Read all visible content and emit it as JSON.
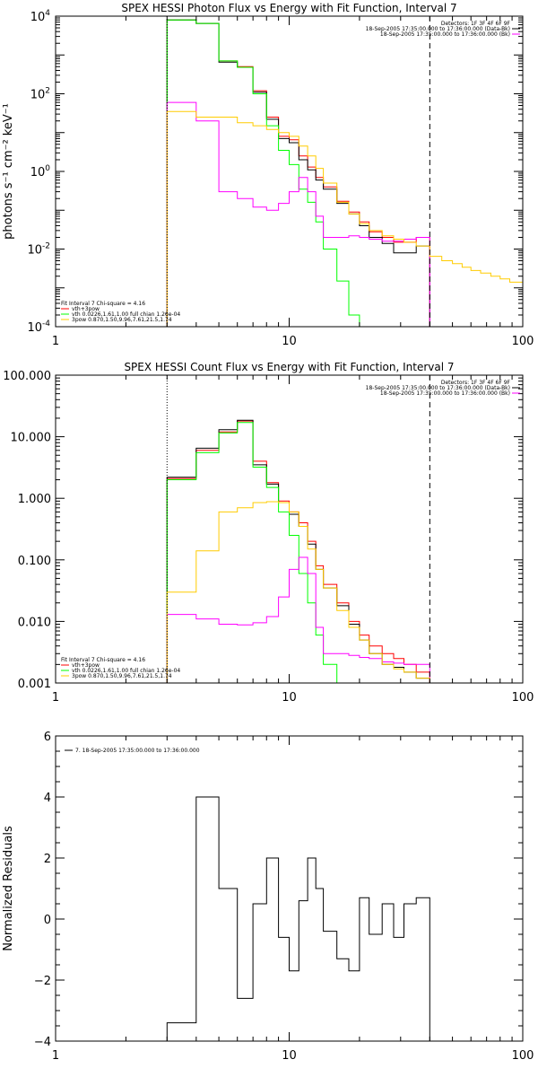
{
  "chart_data": [
    {
      "type": "line",
      "step": true,
      "title": "SPEX HESSI Photon Flux vs Energy with Fit Function, Interval 7",
      "ylabel": "photons s⁻¹ cm⁻² keV⁻¹",
      "xlabel": "",
      "xscale": "log",
      "yscale": "log",
      "xlim": [
        1,
        100
      ],
      "ylim": [
        0.0001,
        10000
      ],
      "x_ticks": [
        {
          "value": 1,
          "label": "1"
        },
        {
          "value": 10,
          "label": "10"
        },
        {
          "value": 100,
          "label": "100"
        }
      ],
      "y_ticks": [
        {
          "value": 0.0001,
          "base": "10",
          "exp": "-4"
        },
        {
          "value": 0.01,
          "base": "10",
          "exp": "-2"
        },
        {
          "value": 1,
          "base": "10",
          "exp": "0"
        },
        {
          "value": 100,
          "base": "10",
          "exp": "2"
        },
        {
          "value": 10000,
          "base": "10",
          "exp": "4"
        }
      ],
      "legend_top_right": {
        "header": "Detectors: 1F 3F 4F 6F 9F",
        "entries": [
          {
            "label": "18-Sep-2005 17:35:00.000 to 17:36:00.000 (Data-Bk)",
            "color": "#000000"
          },
          {
            "label": "18-Sep-2005 17:35:00.000 to 17:36:00.000 (Bk)",
            "color": "#ff00ff"
          }
        ]
      },
      "legend_bottom_left": {
        "header": "Fit Interval 7   Chi-square = 4.16",
        "entries": [
          {
            "label": "vth+3pow",
            "color": "#ff0000"
          },
          {
            "label": "vth 0.0226,1.61,1.00  full chian 1.26e-04",
            "color": "#00ff00"
          },
          {
            "label": "3pow 0.870,1.50,9.96,7.61,21.5,1.74",
            "color": "#ffcc00"
          }
        ]
      },
      "vlines": [
        {
          "x": 3,
          "style": "dotted",
          "color": "#000000"
        },
        {
          "x": 40,
          "style": "dashed",
          "color": "#000000"
        }
      ],
      "series": [
        {
          "color": "#ff0000",
          "edges": [
            3,
            4,
            5,
            6,
            7,
            8,
            9,
            10,
            11,
            12,
            13,
            14,
            16,
            18,
            20,
            22,
            25,
            28,
            31,
            35,
            40
          ],
          "values": [
            8000,
            6500,
            700,
            500,
            120,
            25,
            8,
            6.5,
            2.5,
            1.3,
            0.7,
            0.4,
            0.17,
            0.09,
            0.05,
            0.028,
            0.02,
            0.015,
            0.015,
            0.02
          ]
        },
        {
          "name": "Data-Bk",
          "color": "#000000",
          "edges": [
            3,
            4,
            5,
            6,
            7,
            8,
            9,
            10,
            11,
            12,
            13,
            14,
            16,
            18,
            20,
            22,
            25,
            28,
            31,
            35,
            40
          ],
          "values": [
            8000,
            6500,
            650,
            480,
            110,
            22,
            7,
            5.5,
            2,
            1.1,
            0.6,
            0.35,
            0.15,
            0.08,
            0.04,
            0.02,
            0.014,
            0.008,
            0.008,
            0.012
          ]
        },
        {
          "color": "#00ff00",
          "edges": [
            3,
            4,
            5,
            6,
            7,
            8,
            9,
            10,
            11,
            12,
            13,
            14,
            16,
            18,
            20,
            22
          ],
          "values": [
            8000,
            6500,
            700,
            480,
            100,
            15,
            3.5,
            1.5,
            0.35,
            0.16,
            0.05,
            0.01,
            0.0015,
            0.0002,
            8e-05
          ]
        },
        {
          "color": "#ff00ff",
          "edges": [
            3,
            4,
            5,
            6,
            7,
            8,
            9,
            10,
            11,
            12,
            13,
            14,
            16,
            18,
            20,
            22,
            25,
            28,
            31,
            35,
            40
          ],
          "values": [
            60,
            20,
            0.3,
            0.2,
            0.12,
            0.1,
            0.15,
            0.3,
            0.7,
            0.3,
            0.07,
            0.02,
            0.02,
            0.022,
            0.02,
            0.018,
            0.016,
            0.016,
            0.018,
            0.02
          ]
        },
        {
          "color": "#ffcc00",
          "edges": [
            3,
            4,
            5,
            6,
            7,
            8,
            9,
            10,
            11,
            12,
            13,
            14,
            16,
            18,
            20,
            22,
            25,
            28,
            31,
            35,
            40,
            45,
            50,
            55,
            60,
            66,
            73,
            80,
            88,
            100
          ],
          "values": [
            35,
            25,
            25,
            18,
            15,
            12,
            10,
            8,
            4.5,
            2.5,
            1.2,
            0.5,
            0.16,
            0.08,
            0.045,
            0.03,
            0.022,
            0.018,
            0.015,
            0.012,
            0.0065,
            0.005,
            0.0042,
            0.0034,
            0.0028,
            0.0024,
            0.002,
            0.0017,
            0.0014
          ]
        }
      ]
    },
    {
      "type": "line",
      "step": true,
      "title": "SPEX HESSI Count Flux vs Energy with Fit Function, Interval 7",
      "ylabel": "",
      "xlabel": "",
      "xscale": "log",
      "yscale": "log",
      "xlim": [
        1,
        100
      ],
      "ylim": [
        0.001,
        100
      ],
      "x_ticks": [
        {
          "value": 1,
          "label": "1"
        },
        {
          "value": 10,
          "label": "10"
        },
        {
          "value": 100,
          "label": "100"
        }
      ],
      "y_ticks": [
        {
          "value": 0.001,
          "label": "0.001"
        },
        {
          "value": 0.01,
          "label": "0.010"
        },
        {
          "value": 0.1,
          "label": "0.100"
        },
        {
          "value": 1,
          "label": "1.000"
        },
        {
          "value": 10,
          "label": "10.000"
        },
        {
          "value": 100,
          "label": "100.000"
        }
      ],
      "legend_top_right": {
        "header": "Detectors: 1F 3F 4F 6F 9F",
        "entries": [
          {
            "label": "18-Sep-2005 17:35:00.000 to 17:36:00.000 (Data-Bk)",
            "color": "#000000"
          },
          {
            "label": "18-Sep-2005 17:35:00.000 to 17:36:00.000 (Bk)",
            "color": "#ff00ff"
          }
        ]
      },
      "legend_bottom_left": {
        "header": "Fit Interval 7   Chi-square = 4.16",
        "entries": [
          {
            "label": "vth+3pow",
            "color": "#ff0000"
          },
          {
            "label": "vth 0.0226,1.61,1.00  full chian 1.26e-04",
            "color": "#00ff00"
          },
          {
            "label": "3pow 0.870,1.50,9.96,7.61,21.5,1.74",
            "color": "#ffcc00"
          }
        ]
      },
      "vlines": [
        {
          "x": 3,
          "style": "dotted",
          "color": "#000000"
        },
        {
          "x": 40,
          "style": "dashed",
          "color": "#000000"
        }
      ],
      "series": [
        {
          "color": "#ff0000",
          "edges": [
            3,
            4,
            5,
            6,
            7,
            8,
            9,
            10,
            11,
            12,
            13,
            14,
            16,
            18,
            20,
            22,
            25,
            28,
            31,
            35,
            40
          ],
          "values": [
            2.1,
            6,
            12,
            18,
            4,
            1.8,
            0.9,
            0.6,
            0.4,
            0.2,
            0.08,
            0.04,
            0.02,
            0.01,
            0.006,
            0.004,
            0.003,
            0.0025,
            0.002,
            0.0015
          ]
        },
        {
          "name": "Data-Bk",
          "color": "#000000",
          "edges": [
            3,
            4,
            5,
            6,
            7,
            8,
            9,
            10,
            11,
            12,
            13,
            14,
            16,
            18,
            20,
            22,
            25,
            28,
            31,
            35,
            40
          ],
          "values": [
            2.2,
            6.5,
            13,
            18.5,
            3.5,
            1.7,
            0.85,
            0.55,
            0.35,
            0.18,
            0.07,
            0.035,
            0.018,
            0.009,
            0.005,
            0.003,
            0.002,
            0.0018,
            0.0015,
            0.0012
          ]
        },
        {
          "color": "#00ff00",
          "edges": [
            3,
            4,
            5,
            6,
            7,
            8,
            9,
            10,
            11,
            12,
            13,
            14,
            16
          ],
          "values": [
            2,
            5.5,
            11.5,
            17,
            3.2,
            1.5,
            0.6,
            0.25,
            0.06,
            0.02,
            0.006,
            0.002
          ]
        },
        {
          "color": "#ff00ff",
          "edges": [
            3,
            4,
            5,
            6,
            7,
            8,
            9,
            10,
            11,
            12,
            13,
            14,
            16,
            18,
            20,
            22,
            25,
            28,
            31,
            35,
            40
          ],
          "values": [
            0.013,
            0.011,
            0.009,
            0.0088,
            0.0095,
            0.012,
            0.025,
            0.07,
            0.11,
            0.06,
            0.008,
            0.003,
            0.003,
            0.0028,
            0.0026,
            0.0025,
            0.0022,
            0.0021,
            0.002,
            0.002
          ]
        },
        {
          "color": "#ffcc00",
          "edges": [
            3,
            4,
            5,
            6,
            7,
            8,
            9,
            10,
            11,
            12,
            13,
            14,
            16,
            18,
            20,
            22,
            25,
            28,
            31,
            35,
            40,
            45,
            50
          ],
          "values": [
            0.03,
            0.14,
            0.6,
            0.7,
            0.85,
            0.88,
            0.85,
            0.6,
            0.35,
            0.15,
            0.07,
            0.035,
            0.015,
            0.008,
            0.005,
            0.003,
            0.002,
            0.0017,
            0.0015,
            0.0012,
            0.001,
            0.0009
          ]
        }
      ]
    },
    {
      "type": "line",
      "step": true,
      "title": "",
      "ylabel": "Normalized Residuals",
      "xlabel": "",
      "xscale": "log",
      "yscale": "linear",
      "xlim": [
        1,
        100
      ],
      "ylim": [
        -4,
        6
      ],
      "x_ticks": [
        {
          "value": 1,
          "label": "1"
        },
        {
          "value": 10,
          "label": "10"
        },
        {
          "value": 100,
          "label": "100"
        }
      ],
      "y_ticks": [
        {
          "value": -4,
          "label": "−4"
        },
        {
          "value": -2,
          "label": "−2"
        },
        {
          "value": 0,
          "label": "0"
        },
        {
          "value": 2,
          "label": "2"
        },
        {
          "value": 4,
          "label": "4"
        },
        {
          "value": 6,
          "label": "6"
        }
      ],
      "legend_top_left": {
        "entries": [
          {
            "label": "7. 18-Sep-2005 17:35:00.000 to 17:36:00.000",
            "color": "#000000"
          }
        ]
      },
      "series": [
        {
          "color": "#000000",
          "edges": [
            3,
            4,
            5,
            6,
            7,
            8,
            9,
            10,
            11,
            12,
            13,
            14,
            16,
            18,
            20,
            22,
            25,
            28,
            31,
            35,
            40
          ],
          "values": [
            -3.4,
            4.0,
            1.0,
            -2.6,
            0.5,
            2.0,
            -0.6,
            -1.7,
            0.6,
            2.0,
            1.0,
            -0.4,
            -1.3,
            -1.7,
            0.7,
            -0.5,
            0.5,
            -0.6,
            0.5,
            0.7
          ]
        }
      ]
    }
  ]
}
